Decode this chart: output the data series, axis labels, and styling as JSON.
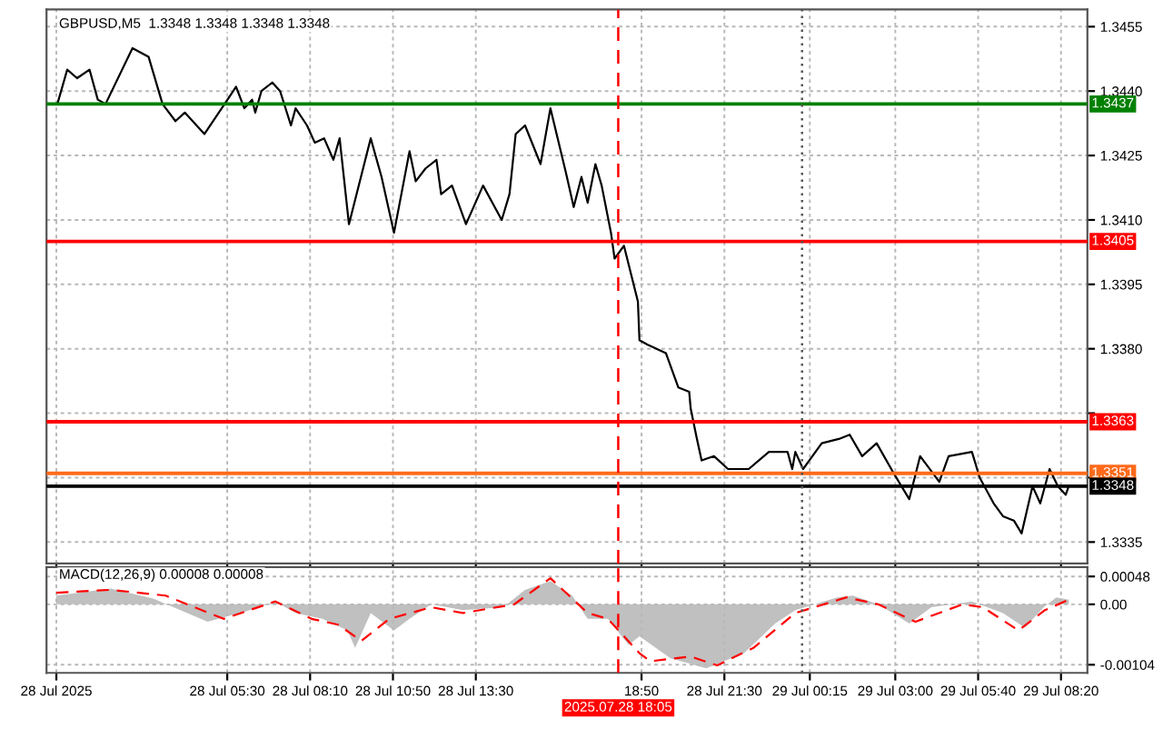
{
  "chart_data": [
    {
      "type": "line",
      "title": "GBPUSD,M5  1.3348 1.3348 1.3348 1.3348",
      "tick_labels": "y",
      "grid": true,
      "xlim": [
        "2025-07-27T23:41",
        "2025-07-29T09:11"
      ],
      "ylim": [
        1.333,
        1.3459
      ],
      "xticks": [
        {
          "value": "2025-07-28T00:00",
          "label": null
        },
        {
          "value": "2025-07-28T05:30",
          "label": null
        },
        {
          "value": "2025-07-28T08:10",
          "label": null
        },
        {
          "value": "2025-07-28T10:50",
          "label": null
        },
        {
          "value": "2025-07-28T13:30",
          "label": null
        },
        {
          "value": "2025-07-28T18:50",
          "label": null
        },
        {
          "value": "2025-07-28T21:30",
          "label": null
        },
        {
          "value": "2025-07-29T00:15",
          "label": null
        },
        {
          "value": "2025-07-29T03:00",
          "label": null
        },
        {
          "value": "2025-07-29T05:40",
          "label": null
        },
        {
          "value": "2025-07-29T08:20",
          "label": null
        }
      ],
      "yticks": [
        1.3455,
        {
          "value": 1.344,
          "label": "1.3440"
        },
        1.3425,
        {
          "value": 1.341,
          "label": "1.3410"
        },
        1.3395,
        {
          "value": 1.338,
          "label": "1.3380"
        },
        {
          "value": 1.3365,
          "label": null
        },
        {
          "value": 1.335,
          "label": null
        },
        1.3335
      ],
      "ref_lines": [
        {
          "axis": "y",
          "value": 1.3437,
          "label": "1.3437",
          "color": "#008000",
          "line_style": "solid"
        },
        {
          "axis": "y",
          "value": 1.3405,
          "label": "1.3405",
          "color": "#ff0000",
          "line_style": "solid"
        },
        {
          "axis": "y",
          "value": 1.3363,
          "label": "1.3363",
          "color": "#ff0000",
          "line_style": "solid"
        },
        {
          "axis": "y",
          "value": 1.3351,
          "label": "1.3351",
          "color": "#ff6a1a",
          "line_style": "solid"
        },
        {
          "axis": "y",
          "value": 1.3348,
          "label": "1.3348",
          "color": "#000000",
          "line_style": "solid"
        },
        {
          "axis": "x",
          "value": "2025-07-28T18:05",
          "label": null,
          "color": "#ff0000",
          "line_style": "dashed"
        },
        {
          "axis": "x",
          "value": "2025-07-29T00:00",
          "label": null,
          "color": "#555555",
          "line_style": "dotted"
        }
      ],
      "series": [
        {
          "color": "#000000",
          "x": [
            "2025-07-28T00:02",
            "2025-07-28T00:21",
            "2025-07-28T00:40",
            "2025-07-28T01:04",
            "2025-07-28T01:20",
            "2025-07-28T01:35",
            "2025-07-28T02:27",
            "2025-07-28T02:58",
            "2025-07-28T03:25",
            "2025-07-28T03:50",
            "2025-07-28T04:08",
            "2025-07-28T04:46",
            "2025-07-28T05:47",
            "2025-07-28T06:03",
            "2025-07-28T06:18",
            "2025-07-28T06:24",
            "2025-07-28T06:36",
            "2025-07-28T06:57",
            "2025-07-28T07:12",
            "2025-07-28T07:33",
            "2025-07-28T07:42",
            "2025-07-28T08:04",
            "2025-07-28T08:19",
            "2025-07-28T08:37",
            "2025-07-28T08:55",
            "2025-07-28T09:07",
            "2025-07-28T09:25",
            "2025-07-28T10:07",
            "2025-07-28T10:28",
            "2025-07-28T10:52",
            "2025-07-28T11:22",
            "2025-07-28T11:34",
            "2025-07-28T11:53",
            "2025-07-28T12:14",
            "2025-07-28T12:23",
            "2025-07-28T12:44",
            "2025-07-28T13:11",
            "2025-07-28T13:44",
            "2025-07-28T14:20",
            "2025-07-28T14:35",
            "2025-07-28T14:47",
            "2025-07-28T15:05",
            "2025-07-28T15:35",
            "2025-07-28T15:54",
            "2025-07-28T16:24",
            "2025-07-28T16:39",
            "2025-07-28T16:54",
            "2025-07-28T17:06",
            "2025-07-28T17:21",
            "2025-07-28T17:33",
            "2025-07-28T17:51",
            "2025-07-28T17:58",
            "2025-07-28T18:16",
            "2025-07-28T18:43",
            "2025-07-28T18:46",
            "2025-07-28T19:01",
            "2025-07-28T19:37",
            "2025-07-28T20:01",
            "2025-07-28T20:22",
            "2025-07-28T20:25",
            "2025-07-28T20:37",
            "2025-07-28T20:46",
            "2025-07-28T21:10",
            "2025-07-28T21:37",
            "2025-07-28T22:17",
            "2025-07-28T22:56",
            "2025-07-28T23:32",
            "2025-07-28T23:41",
            "2025-07-28T23:47",
            "2025-07-29T00:02",
            "2025-07-29T00:38",
            "2025-07-29T01:11",
            "2025-07-29T01:32",
            "2025-07-29T01:56",
            "2025-07-29T02:24",
            "2025-07-29T02:57",
            "2025-07-29T03:27",
            "2025-07-29T03:48",
            "2025-07-29T04:25",
            "2025-07-29T04:43",
            "2025-07-29T05:28",
            "2025-07-29T05:43",
            "2025-07-29T06:10",
            "2025-07-29T06:28",
            "2025-07-29T06:49",
            "2025-07-29T07:04",
            "2025-07-29T07:25",
            "2025-07-29T07:40",
            "2025-07-29T07:58",
            "2025-07-29T08:14",
            "2025-07-29T08:29",
            "2025-07-29T08:35"
          ],
          "values": [
            1.3437,
            1.3445,
            1.3443,
            1.3445,
            1.3438,
            1.3437,
            1.345,
            1.3448,
            1.3437,
            1.3433,
            1.3435,
            1.343,
            1.3441,
            1.3436,
            1.3438,
            1.3435,
            1.344,
            1.3442,
            1.344,
            1.3432,
            1.3436,
            1.3432,
            1.3428,
            1.3429,
            1.3424,
            1.3429,
            1.3409,
            1.3429,
            1.342,
            1.3407,
            1.3426,
            1.3419,
            1.3422,
            1.3424,
            1.3416,
            1.3418,
            1.3409,
            1.3418,
            1.341,
            1.3416,
            1.343,
            1.3432,
            1.3423,
            1.3436,
            1.3421,
            1.3413,
            1.342,
            1.3414,
            1.3423,
            1.3418,
            1.3407,
            1.3401,
            1.3404,
            1.3391,
            1.3382,
            1.3381,
            1.3379,
            1.3371,
            1.337,
            1.3366,
            1.3359,
            1.3354,
            1.3355,
            1.3352,
            1.3352,
            1.3356,
            1.3356,
            1.3352,
            1.3356,
            1.3352,
            1.3358,
            1.3359,
            1.336,
            1.3355,
            1.3358,
            1.3351,
            1.3345,
            1.3355,
            1.3349,
            1.3355,
            1.3356,
            1.335,
            1.3344,
            1.3341,
            1.334,
            1.3337,
            1.3348,
            1.3344,
            1.3352,
            1.3348,
            1.3346,
            1.3348
          ]
        }
      ]
    },
    {
      "type": "area",
      "title": "MACD(12,26,9) 0.00008 0.00008",
      "grid": true,
      "xlim": [
        "2025-07-27T23:41",
        "2025-07-29T09:11"
      ],
      "ylim": [
        -0.00118,
        0.00064
      ],
      "xticks": [
        {
          "value": "2025-07-28T00:00",
          "label": "28 Jul 2025"
        },
        {
          "value": "2025-07-28T05:30",
          "label": "28 Jul 05:30"
        },
        {
          "value": "2025-07-28T08:10",
          "label": "28 Jul 08:10"
        },
        {
          "value": "2025-07-28T10:50",
          "label": "28 Jul 10:50"
        },
        {
          "value": "2025-07-28T13:30",
          "label": "28 Jul 13:30"
        },
        {
          "value": "2025-07-28T18:50",
          "label": "18:50"
        },
        {
          "value": "2025-07-28T21:30",
          "label": "28 Jul 21:30"
        },
        {
          "value": "2025-07-29T00:15",
          "label": "29 Jul 00:15"
        },
        {
          "value": "2025-07-29T03:00",
          "label": "29 Jul 03:00"
        },
        {
          "value": "2025-07-29T05:40",
          "label": "29 Jul 05:40"
        },
        {
          "value": "2025-07-29T08:20",
          "label": "29 Jul 08:20"
        }
      ],
      "yticks": [
        0.00048,
        {
          "value": 0,
          "label": "0.00"
        },
        -0.00104
      ],
      "ref_lines": [
        {
          "axis": "x",
          "value": "2025-07-28T18:05",
          "label": "2025.07.28 18:05",
          "color": "#ff0000",
          "line_style": "dashed"
        },
        {
          "axis": "x",
          "value": "2025-07-29T00:00",
          "label": null,
          "color": "#555555",
          "line_style": "dotted"
        }
      ],
      "series": [
        {
          "color": "#c0c0c0",
          "x": [
            "2025-07-28T00:00",
            "2025-07-28T01:45",
            "2025-07-28T03:07",
            "2025-07-28T04:52",
            "2025-07-28T06:03",
            "2025-07-28T07:03",
            "2025-07-28T07:42",
            "2025-07-28T08:34",
            "2025-07-28T09:22",
            "2025-07-28T09:37",
            "2025-07-28T10:07",
            "2025-07-28T10:52",
            "2025-07-28T11:22",
            "2025-07-28T12:04",
            "2025-07-28T13:05",
            "2025-07-28T14:23",
            "2025-07-28T15:05",
            "2025-07-28T15:54",
            "2025-07-28T16:36",
            "2025-07-28T17:06",
            "2025-07-28T17:45",
            "2025-07-28T18:25",
            "2025-07-28T18:46",
            "2025-07-28T19:46",
            "2025-07-28T20:55",
            "2025-07-28T22:08",
            "2025-07-28T23:08",
            "2025-07-28T23:47",
            "2025-07-29T01:08",
            "2025-07-29T01:38",
            "2025-07-29T02:27",
            "2025-07-29T03:27",
            "2025-07-29T04:10",
            "2025-07-29T05:28",
            "2025-07-29T06:28",
            "2025-07-29T07:10",
            "2025-07-29T07:49",
            "2025-07-29T08:11",
            "2025-07-29T08:35"
          ],
          "values": [
            0.00015,
            0.00027,
            0.0001,
            -0.0003,
            -0.00013,
            5e-05,
            -0.00015,
            -0.00025,
            -0.00045,
            -0.00075,
            -0.00015,
            -0.00045,
            -0.00025,
            0,
            -0.0001,
            -5e-05,
            0.00025,
            0.0004,
            0.00015,
            -0.00025,
            -0.00025,
            -0.0007,
            -0.00055,
            -0.00093,
            -0.0011,
            -0.00084,
            -0.00033,
            -0.0001,
            0.00012,
            0.00015,
            0,
            -0.00033,
            -5e-05,
            5e-05,
            -0.00015,
            -0.0004,
            -3e-05,
            0.00012,
            8e-05
          ]
        },
        {
          "type": "line",
          "color": "#ff0000",
          "line_style": "dashed",
          "x": [
            "2025-07-28T00:00",
            "2025-07-28T01:45",
            "2025-07-28T03:31",
            "2025-07-28T05:23",
            "2025-07-28T07:03",
            "2025-07-28T08:13",
            "2025-07-28T09:04",
            "2025-07-28T09:49",
            "2025-07-28T10:43",
            "2025-07-28T12:04",
            "2025-07-28T13:05",
            "2025-07-28T14:44",
            "2025-07-28T15:54",
            "2025-07-28T17:06",
            "2025-07-28T17:45",
            "2025-07-28T18:46",
            "2025-07-28T19:07",
            "2025-07-28T20:25",
            "2025-07-28T21:16",
            "2025-07-28T22:26",
            "2025-07-28T23:47",
            "2025-07-29T01:26",
            "2025-07-29T02:27",
            "2025-07-29T03:39",
            "2025-07-29T05:10",
            "2025-07-29T05:49",
            "2025-07-29T06:58",
            "2025-07-29T07:49",
            "2025-07-29T08:35"
          ],
          "values": [
            0.0002,
            0.00025,
            0.00015,
            -0.00025,
            5e-05,
            -0.00025,
            -0.00035,
            -0.00063,
            -0.00025,
            -5e-05,
            -0.00015,
            0,
            0.00045,
            -0.00015,
            -0.00025,
            -0.00084,
            -0.00098,
            -0.0009,
            -0.00105,
            -0.00075,
            -0.00015,
            0.00012,
            0,
            -0.0003,
            0,
            -5e-05,
            -0.00045,
            -0.0001,
            8e-05
          ]
        }
      ]
    }
  ]
}
